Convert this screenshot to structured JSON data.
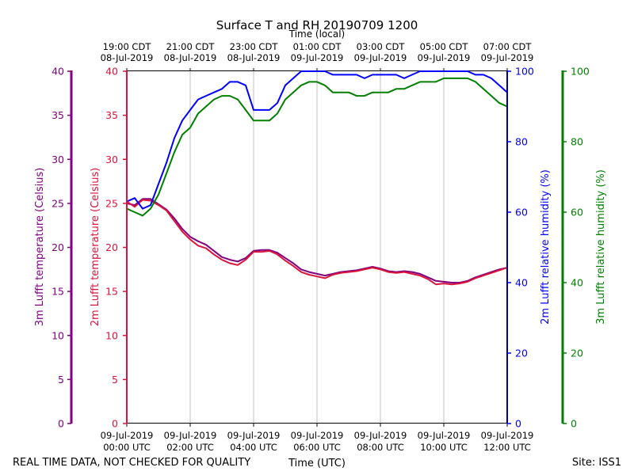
{
  "chart_data": {
    "type": "line",
    "title": "Surface T and RH 20190709 1200",
    "top_axis_label": "Time (local)",
    "xlabel": "Time (UTC)",
    "footer_left": "REAL TIME DATA, NOT CHECKED FOR QUALITY",
    "footer_right": "Site: ISS1",
    "xlim": [
      0,
      12
    ],
    "x_ticks_utc": [
      {
        "x": 0,
        "line1": "09-Jul-2019",
        "line2": "00:00 UTC"
      },
      {
        "x": 2,
        "line1": "09-Jul-2019",
        "line2": "02:00 UTC"
      },
      {
        "x": 4,
        "line1": "09-Jul-2019",
        "line2": "04:00 UTC"
      },
      {
        "x": 6,
        "line1": "09-Jul-2019",
        "line2": "06:00 UTC"
      },
      {
        "x": 8,
        "line1": "09-Jul-2019",
        "line2": "08:00 UTC"
      },
      {
        "x": 10,
        "line1": "09-Jul-2019",
        "line2": "10:00 UTC"
      },
      {
        "x": 12,
        "line1": "09-Jul-2019",
        "line2": "12:00 UTC"
      }
    ],
    "x_ticks_local": [
      {
        "x": 0,
        "line1": "19:00 CDT",
        "line2": "08-Jul-2019"
      },
      {
        "x": 2,
        "line1": "21:00 CDT",
        "line2": "08-Jul-2019"
      },
      {
        "x": 4,
        "line1": "23:00 CDT",
        "line2": "08-Jul-2019"
      },
      {
        "x": 6,
        "line1": "01:00 CDT",
        "line2": "09-Jul-2019"
      },
      {
        "x": 8,
        "line1": "03:00 CDT",
        "line2": "09-Jul-2019"
      },
      {
        "x": 10,
        "line1": "05:00 CDT",
        "line2": "09-Jul-2019"
      },
      {
        "x": 12,
        "line1": "07:00 CDT",
        "line2": "09-Jul-2019"
      }
    ],
    "axes": {
      "t3m": {
        "label": "3m Lufft temperature (Celsius)",
        "color": "#800080",
        "ylim": [
          0,
          40
        ],
        "ticks": [
          "0",
          "5",
          "10",
          "15",
          "20",
          "25",
          "30",
          "35",
          "40"
        ]
      },
      "t2m": {
        "label": "2m Lufft temperature (Celsius)",
        "color": "#dc143c",
        "ylim": [
          0,
          40
        ],
        "ticks": [
          "0",
          "5",
          "10",
          "15",
          "20",
          "25",
          "30",
          "35",
          "40"
        ]
      },
      "rh2m": {
        "label": "2m Lufft relative humidity (%)",
        "color": "#0000ff",
        "ylim": [
          0,
          100
        ],
        "ticks": [
          "0",
          "20",
          "40",
          "60",
          "80",
          "100"
        ]
      },
      "rh3m": {
        "label": "3m Lufft relative humidity (%)",
        "color": "#008000",
        "ylim": [
          0,
          100
        ],
        "ticks": [
          "0",
          "20",
          "40",
          "60",
          "80",
          "100"
        ]
      }
    },
    "series": [
      {
        "name": "3m Lufft temperature",
        "axis": "t3m",
        "color": "#800080",
        "x": [
          0,
          0.25,
          0.5,
          0.75,
          1.0,
          1.25,
          1.5,
          1.75,
          2.0,
          2.25,
          2.5,
          2.75,
          3.0,
          3.25,
          3.5,
          3.75,
          4.0,
          4.25,
          4.5,
          4.75,
          5.0,
          5.25,
          5.5,
          5.75,
          6.0,
          6.25,
          6.5,
          6.75,
          7.0,
          7.25,
          7.5,
          7.75,
          8.0,
          8.25,
          8.5,
          8.75,
          9.0,
          9.25,
          9.5,
          9.75,
          10.0,
          10.25,
          10.5,
          10.75,
          11.0,
          11.25,
          11.5,
          11.75,
          12.0
        ],
        "values": [
          25.0,
          24.8,
          25.5,
          25.5,
          24.9,
          24.3,
          23.3,
          22.1,
          21.2,
          20.7,
          20.3,
          19.6,
          18.9,
          18.6,
          18.4,
          18.8,
          19.6,
          19.7,
          19.7,
          19.4,
          18.8,
          18.2,
          17.5,
          17.2,
          17.0,
          16.8,
          17.0,
          17.2,
          17.3,
          17.4,
          17.6,
          17.8,
          17.6,
          17.3,
          17.2,
          17.3,
          17.2,
          17.0,
          16.6,
          16.2,
          16.1,
          16.0,
          16.0,
          16.2,
          16.6,
          16.9,
          17.2,
          17.5,
          17.7
        ]
      },
      {
        "name": "2m Lufft temperature",
        "axis": "t2m",
        "color": "#dc143c",
        "x": [
          0,
          0.25,
          0.5,
          0.75,
          1.0,
          1.25,
          1.5,
          1.75,
          2.0,
          2.25,
          2.5,
          2.75,
          3.0,
          3.25,
          3.5,
          3.75,
          4.0,
          4.25,
          4.5,
          4.75,
          5.0,
          5.25,
          5.5,
          5.75,
          6.0,
          6.25,
          6.5,
          6.75,
          7.0,
          7.25,
          7.5,
          7.75,
          8.0,
          8.25,
          8.5,
          8.75,
          9.0,
          9.25,
          9.5,
          9.75,
          10.0,
          10.25,
          10.5,
          10.75,
          11.0,
          11.25,
          11.5,
          11.75,
          12.0
        ],
        "values": [
          25.2,
          24.6,
          25.4,
          25.3,
          24.8,
          24.2,
          23.0,
          21.8,
          20.9,
          20.2,
          19.9,
          19.2,
          18.6,
          18.2,
          18.0,
          18.6,
          19.5,
          19.5,
          19.6,
          19.2,
          18.5,
          17.9,
          17.2,
          16.9,
          16.7,
          16.5,
          16.9,
          17.1,
          17.2,
          17.3,
          17.5,
          17.7,
          17.5,
          17.2,
          17.1,
          17.2,
          17.0,
          16.8,
          16.4,
          15.8,
          15.9,
          15.8,
          15.9,
          16.1,
          16.5,
          16.8,
          17.1,
          17.4,
          17.7
        ]
      },
      {
        "name": "2m Lufft relative humidity",
        "axis": "rh2m",
        "color": "#0000ff",
        "x": [
          0,
          0.25,
          0.5,
          0.75,
          1.0,
          1.25,
          1.5,
          1.75,
          2.0,
          2.25,
          2.5,
          2.75,
          3.0,
          3.25,
          3.5,
          3.75,
          4.0,
          4.25,
          4.5,
          4.75,
          5.0,
          5.25,
          5.5,
          5.75,
          6.0,
          6.25,
          6.5,
          6.75,
          7.0,
          7.25,
          7.5,
          7.75,
          8.0,
          8.25,
          8.5,
          8.75,
          9.0,
          9.25,
          9.5,
          9.75,
          10.0,
          10.25,
          10.5,
          10.75,
          11.0,
          11.25,
          11.5,
          11.75,
          12.0
        ],
        "values": [
          63,
          64,
          61,
          62,
          68,
          74,
          81,
          86,
          89,
          92,
          93,
          94,
          95,
          97,
          97,
          96,
          89,
          89,
          89,
          91,
          96,
          98,
          100,
          100,
          100,
          100,
          99,
          99,
          99,
          99,
          98,
          99,
          99,
          99,
          99,
          98,
          99,
          100,
          100,
          100,
          100,
          100,
          100,
          100,
          99,
          99,
          98,
          96,
          94
        ]
      },
      {
        "name": "3m Lufft relative humidity",
        "axis": "rh3m",
        "color": "#008000",
        "x": [
          0,
          0.25,
          0.5,
          0.75,
          1.0,
          1.25,
          1.5,
          1.75,
          2.0,
          2.25,
          2.5,
          2.75,
          3.0,
          3.25,
          3.5,
          3.75,
          4.0,
          4.25,
          4.5,
          4.75,
          5.0,
          5.25,
          5.5,
          5.75,
          6.0,
          6.25,
          6.5,
          6.75,
          7.0,
          7.25,
          7.5,
          7.75,
          8.0,
          8.25,
          8.5,
          8.75,
          9.0,
          9.25,
          9.5,
          9.75,
          10.0,
          10.25,
          10.5,
          10.75,
          11.0,
          11.25,
          11.5,
          11.75,
          12.0
        ],
        "values": [
          61,
          60,
          59,
          61,
          65,
          71,
          77,
          82,
          84,
          88,
          90,
          92,
          93,
          93,
          92,
          89,
          86,
          86,
          86,
          88,
          92,
          94,
          96,
          97,
          97,
          96,
          94,
          94,
          94,
          93,
          93,
          94,
          94,
          94,
          95,
          95,
          96,
          97,
          97,
          97,
          98,
          98,
          98,
          98,
          97,
          95,
          93,
          91,
          90
        ]
      }
    ]
  }
}
